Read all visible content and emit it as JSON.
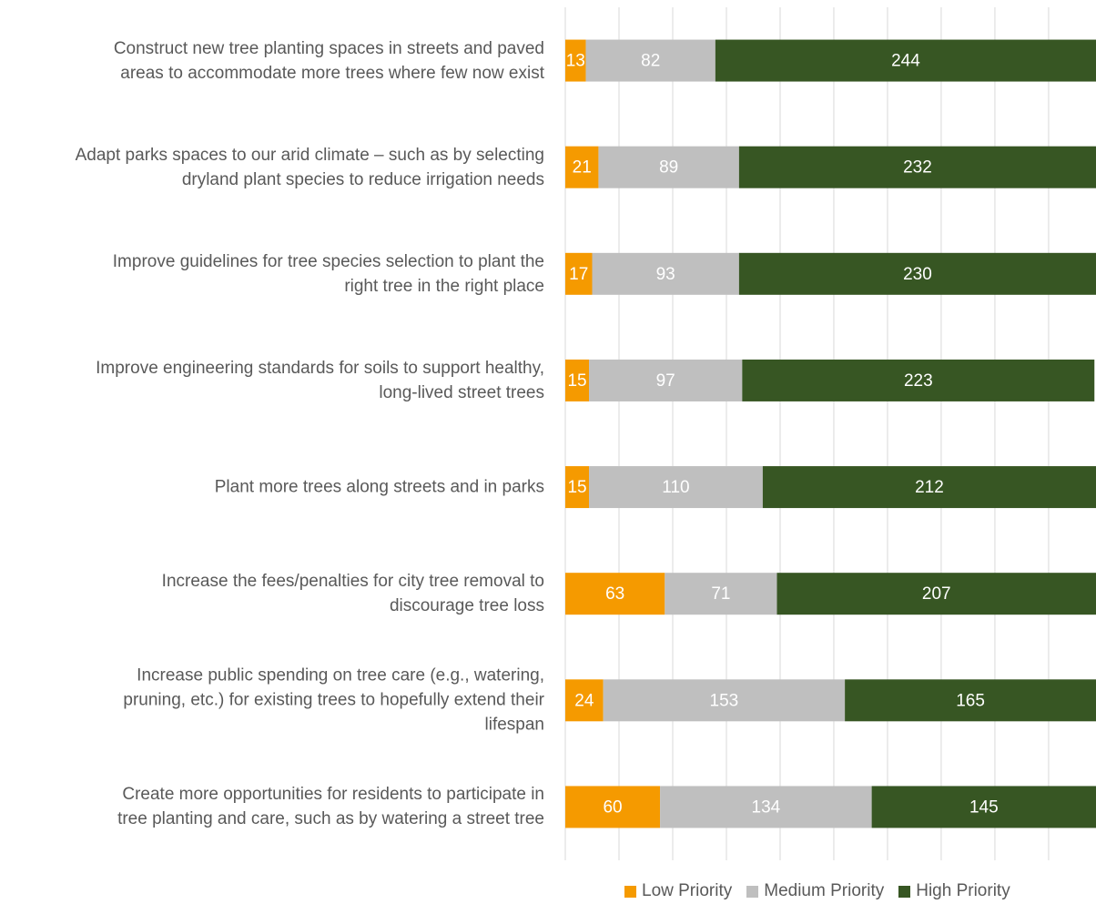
{
  "chart_data": {
    "type": "stacked-bar-horizontal",
    "categories": [
      "Construct new tree planting spaces in streets and paved\nareas to accommodate more trees where few now exist",
      "Adapt parks spaces to our arid climate – such as by selecting\ndryland plant species to reduce irrigation needs",
      "Improve guidelines for tree species selection to plant the\nright tree in the right place",
      "Improve engineering standards for soils to support healthy,\nlong-lived street trees",
      "Plant more trees along streets and in parks",
      "Increase the fees/penalties for city tree removal to\ndiscourage tree loss",
      "Increase public spending on tree care (e.g., watering,\npruning, etc.) for existing trees to hopefully extend their\nlifespan",
      "Create more opportunities for residents to participate in\ntree planting and care, such as by watering a street tree"
    ],
    "series": [
      {
        "name": "Low Priority",
        "color": "#f59a00",
        "values": [
          13,
          21,
          17,
          15,
          15,
          63,
          24,
          60
        ]
      },
      {
        "name": "Medium Priority",
        "color": "#bfbfbf",
        "values": [
          82,
          89,
          93,
          97,
          110,
          71,
          153,
          134
        ]
      },
      {
        "name": "High Priority",
        "color": "#375623",
        "values": [
          244,
          232,
          230,
          223,
          212,
          207,
          165,
          145
        ]
      }
    ],
    "xlim": [
      0,
      336
    ],
    "xticks": [
      0,
      34,
      68,
      102,
      136,
      170,
      204,
      238,
      272,
      306
    ],
    "grid": true
  }
}
